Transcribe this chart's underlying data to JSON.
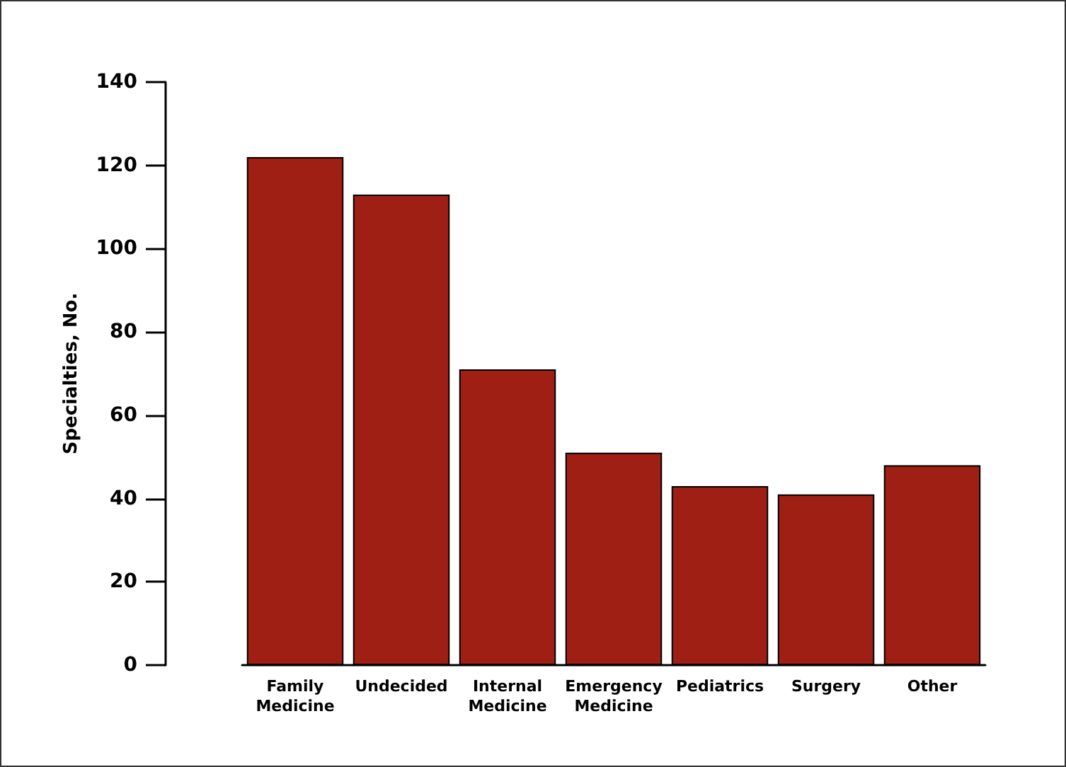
{
  "chart_data": {
    "type": "bar",
    "ylabel": "Specialties, No.",
    "categories": [
      "Family\nMedicine",
      "Undecided",
      "Internal\nMedicine",
      "Emergency\nMedicine",
      "Pediatrics",
      "Surgery",
      "Other"
    ],
    "values": [
      122,
      113,
      71,
      51,
      43,
      41,
      48
    ],
    "color": "#a01f14",
    "ylim": [
      0,
      140
    ],
    "yticks": [
      0,
      20,
      40,
      60,
      80,
      100,
      120,
      140
    ],
    "grid": false
  }
}
